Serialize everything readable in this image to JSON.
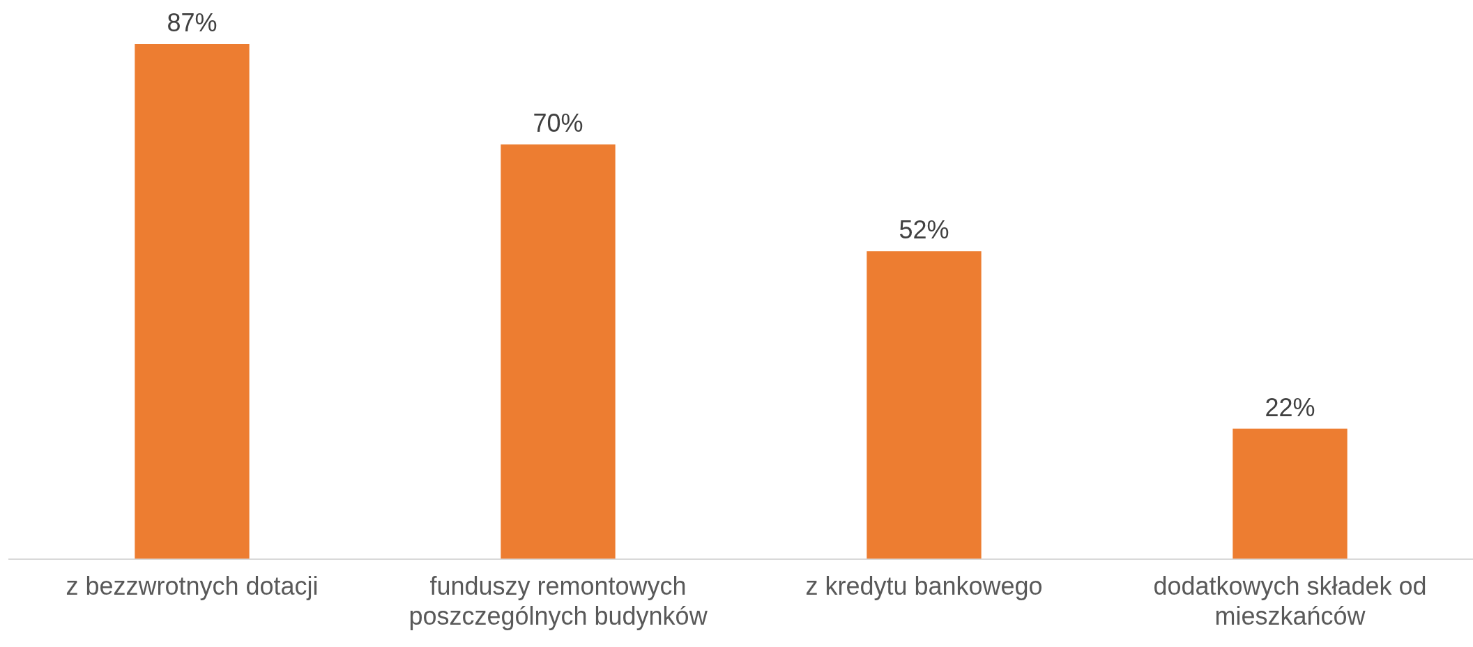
{
  "chart_data": {
    "type": "bar",
    "categories": [
      "z bezzwrotnych dotacji",
      "funduszy remontowych poszczególnych budynków",
      "z kredytu bankowego",
      "dodatkowych składek od mieszkańców"
    ],
    "values": [
      87,
      70,
      52,
      22
    ],
    "value_labels": [
      "87%",
      "70%",
      "52%",
      "22%"
    ],
    "color": "#ed7d31",
    "grid": false,
    "legend": false
  }
}
